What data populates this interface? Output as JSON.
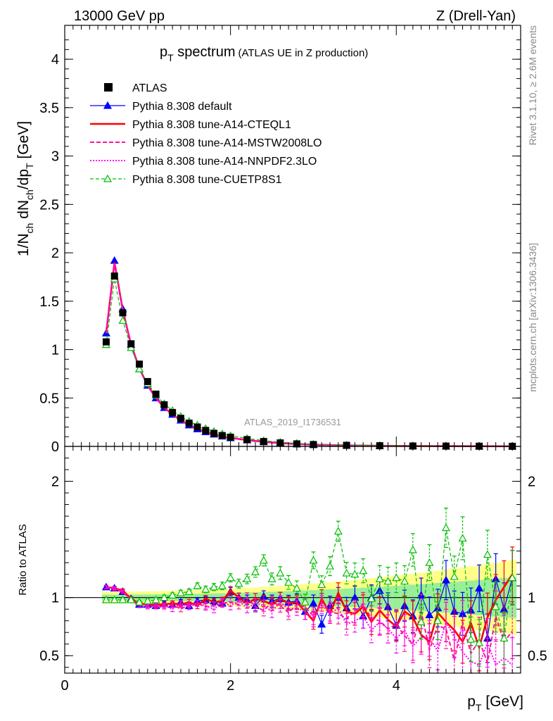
{
  "header": {
    "left": "13000 GeV pp",
    "right": "Z (Drell-Yan)"
  },
  "side_labels": {
    "rivet": "Rivet 3.1.10, ≥ 2.6M events",
    "mcplots": "mcplots.cern.ch [arXiv:1306.3436]"
  },
  "watermark": "ATLAS_2019_I1736531",
  "title": {
    "main_pre": "p",
    "main_sub": "T",
    "main_post": " spectrum",
    "sub": "(ATLAS UE in Z production)"
  },
  "axes": {
    "ylabel_text": "1/N",
    "ylabel_sub1": "ch",
    "ylabel_mid": " dN",
    "ylabel_sub2": "ch",
    "ylabel_mid2": "/dp",
    "ylabel_sub3": "T",
    "ylabel_unit": " [GeV]",
    "xlabel_pre": "p",
    "xlabel_sub": "T",
    "xlabel_post": " [GeV]",
    "ratio_label": "Ratio to ATLAS",
    "main_yticks": [
      "0",
      "0.5",
      "1",
      "1.5",
      "2",
      "2.5",
      "3",
      "3.5",
      "4"
    ],
    "ratio_yticks_left": [
      "0.5",
      "1",
      "2"
    ],
    "ratio_yticks_right": [
      "0.5",
      "1",
      "2"
    ],
    "xticks": [
      "0",
      "2",
      "4"
    ]
  },
  "legend": [
    {
      "label": "ATLAS",
      "color": "#000000",
      "style": "square"
    },
    {
      "label": "Pythia 8.308 default",
      "color": "#0000ff",
      "style": "solid-triangle"
    },
    {
      "label": "Pythia 8.308 tune-A14-CTEQL1",
      "color": "#ff0000",
      "style": "thick-solid"
    },
    {
      "label": "Pythia 8.308 tune-A14-MSTW2008LO",
      "color": "#ff1493",
      "style": "dashed"
    },
    {
      "label": "Pythia 8.308 tune-A14-NNPDF2.3LO",
      "color": "#ff00ff",
      "style": "dotted"
    },
    {
      "label": "Pythia 8.308 tune-CUETP8S1",
      "color": "#00c000",
      "style": "dashed-open-triangle"
    }
  ],
  "chart_data": {
    "type": "line",
    "title": "pT spectrum (ATLAS UE in Z production)",
    "xlabel": "pT [GeV]",
    "ylabel": "1/Nch dNch/dpT [GeV]",
    "xlim": [
      0,
      5.5
    ],
    "ylim": [
      0,
      4.35
    ],
    "ratio_ylim": [
      0.35,
      2.3
    ],
    "data_x": [
      0.5,
      0.6,
      0.7,
      0.8,
      0.9,
      1.0,
      1.1,
      1.2,
      1.3,
      1.4,
      1.5,
      1.6,
      1.7,
      1.8,
      1.9,
      2.0,
      2.2,
      2.4,
      2.6,
      2.8,
      3.0,
      3.4,
      3.8,
      4.2,
      4.6,
      5.0,
      5.4
    ],
    "data_y": [
      1.08,
      1.76,
      1.38,
      1.06,
      0.85,
      0.67,
      0.54,
      0.43,
      0.35,
      0.29,
      0.24,
      0.2,
      0.165,
      0.135,
      0.112,
      0.095,
      0.07,
      0.05,
      0.036,
      0.026,
      0.019,
      0.011,
      0.007,
      0.004,
      0.003,
      0.002,
      0.001
    ],
    "series_main": [
      {
        "name": "Pythia 8.308 default",
        "values": [
          1.17,
          1.92,
          1.42,
          1.05,
          0.8,
          0.63,
          0.5,
          0.4,
          0.33,
          0.27,
          0.22,
          0.18,
          0.15,
          0.125,
          0.105,
          0.088,
          0.065,
          0.047,
          0.034,
          0.025,
          0.018,
          0.01,
          0.006,
          0.004,
          0.003,
          0.002,
          0.001
        ]
      },
      {
        "name": "Pythia 8.308 tune-A14-CTEQL1",
        "values": [
          1.17,
          1.9,
          1.41,
          1.05,
          0.81,
          0.63,
          0.5,
          0.4,
          0.33,
          0.27,
          0.22,
          0.18,
          0.15,
          0.125,
          0.105,
          0.088,
          0.065,
          0.047,
          0.034,
          0.025,
          0.018,
          0.01,
          0.006,
          0.004,
          0.003,
          0.002,
          0.001
        ]
      },
      {
        "name": "Pythia 8.308 tune-A14-MSTW2008LO",
        "values": [
          1.17,
          1.89,
          1.41,
          1.05,
          0.8,
          0.63,
          0.5,
          0.4,
          0.33,
          0.27,
          0.22,
          0.18,
          0.15,
          0.125,
          0.105,
          0.088,
          0.065,
          0.047,
          0.034,
          0.025,
          0.018,
          0.01,
          0.006,
          0.004,
          0.003,
          0.002,
          0.001
        ]
      },
      {
        "name": "Pythia 8.308 tune-A14-NNPDF2.3LO",
        "values": [
          1.17,
          1.89,
          1.41,
          1.05,
          0.8,
          0.63,
          0.5,
          0.4,
          0.33,
          0.27,
          0.22,
          0.18,
          0.15,
          0.125,
          0.105,
          0.088,
          0.065,
          0.047,
          0.034,
          0.025,
          0.018,
          0.01,
          0.006,
          0.004,
          0.003,
          0.002,
          0.001
        ]
      },
      {
        "name": "Pythia 8.308 tune-CUETP8S1",
        "values": [
          1.05,
          1.73,
          1.3,
          1.02,
          0.8,
          0.65,
          0.53,
          0.44,
          0.37,
          0.31,
          0.26,
          0.22,
          0.185,
          0.155,
          0.13,
          0.11,
          0.082,
          0.06,
          0.044,
          0.032,
          0.023,
          0.013,
          0.008,
          0.005,
          0.004,
          0.003,
          0.002
        ]
      }
    ],
    "ratio_x": [
      0.5,
      0.6,
      0.7,
      0.8,
      0.9,
      1.0,
      1.1,
      1.2,
      1.3,
      1.4,
      1.5,
      1.6,
      1.7,
      1.8,
      1.9,
      2.0,
      2.1,
      2.2,
      2.3,
      2.4,
      2.5,
      2.6,
      2.7,
      2.8,
      2.9,
      3.0,
      3.1,
      3.2,
      3.3,
      3.4,
      3.5,
      3.6,
      3.7,
      3.8,
      3.9,
      4.0,
      4.1,
      4.2,
      4.3,
      4.4,
      4.5,
      4.6,
      4.7,
      4.8,
      4.9,
      5.0,
      5.1,
      5.2,
      5.3,
      5.4
    ],
    "ratio_series": [
      {
        "name": "Pythia 8.308 default",
        "values": [
          1.09,
          1.08,
          1.05,
          0.99,
          0.94,
          0.94,
          0.93,
          0.95,
          0.94,
          0.96,
          0.93,
          0.97,
          0.98,
          0.97,
          0.95,
          1.05,
          1.0,
          0.98,
          0.93,
          1.01,
          0.97,
          0.99,
          0.96,
          0.97,
          0.88,
          0.95,
          0.77,
          0.93,
          1.0,
          0.91,
          1.0,
          0.84,
          1.0,
          1.06,
          0.92,
          0.76,
          0.93,
          0.84,
          1.02,
          0.85,
          0.91,
          1.15,
          0.88,
          0.86,
          0.89,
          1.08,
          0.65,
          1.16,
          0.9,
          1.17
        ]
      },
      {
        "name": "Pythia 8.308 tune-A14-CTEQL1",
        "values": [
          1.09,
          1.08,
          1.06,
          0.99,
          0.95,
          0.94,
          0.94,
          0.94,
          0.95,
          0.94,
          0.96,
          0.93,
          0.99,
          0.96,
          0.97,
          1.06,
          1.0,
          0.95,
          0.99,
          0.97,
          0.94,
          0.99,
          0.95,
          0.96,
          0.88,
          0.8,
          0.99,
          0.86,
          1.04,
          0.88,
          0.86,
          0.92,
          0.79,
          0.89,
          0.81,
          0.75,
          0.88,
          0.83,
          0.68,
          0.62,
          0.87,
          0.79,
          0.72,
          0.62,
          0.78,
          0.57,
          0.83,
          0.98,
          1.09,
          1.2
        ]
      },
      {
        "name": "Pythia 8.308 tune-A14-MSTW2008LO",
        "values": [
          1.09,
          1.07,
          1.05,
          0.98,
          0.93,
          0.93,
          0.92,
          0.92,
          0.94,
          0.9,
          0.94,
          0.95,
          0.92,
          0.93,
          0.95,
          0.96,
          0.94,
          1.0,
          0.92,
          0.89,
          0.96,
          0.93,
          0.87,
          0.94,
          0.92,
          0.84,
          0.96,
          0.88,
          0.86,
          0.82,
          0.88,
          0.94,
          0.82,
          0.8,
          0.73,
          0.77,
          0.67,
          0.6,
          0.88,
          0.55,
          0.76,
          0.73,
          0.46,
          0.79,
          0.52,
          0.63,
          0.44,
          0.84,
          0.62,
          0.71
        ]
      },
      {
        "name": "Pythia 8.308 tune-A14-NNPDF2.3LO",
        "values": [
          1.09,
          1.08,
          1.05,
          0.98,
          0.93,
          0.92,
          0.93,
          0.93,
          0.9,
          0.95,
          0.92,
          0.95,
          0.93,
          0.9,
          0.96,
          0.93,
          0.97,
          0.91,
          0.95,
          0.93,
          0.88,
          0.96,
          0.9,
          0.91,
          0.88,
          0.82,
          0.94,
          0.86,
          0.91,
          0.77,
          0.8,
          0.84,
          0.72,
          0.79,
          0.73,
          0.65,
          0.72,
          0.58,
          0.66,
          0.65,
          0.54,
          0.79,
          0.66,
          0.53,
          0.45,
          0.42,
          0.61,
          0.42,
          0.48,
          0.42
        ]
      },
      {
        "name": "Pythia 8.308 tune-CUETP8S1",
        "values": [
          0.98,
          0.98,
          0.98,
          0.98,
          0.96,
          0.97,
          0.98,
          1.0,
          1.02,
          1.04,
          1.05,
          1.1,
          1.07,
          1.09,
          1.1,
          1.17,
          1.12,
          1.16,
          1.22,
          1.32,
          1.16,
          1.21,
          1.13,
          1.08,
          0.96,
          1.32,
          1.11,
          1.27,
          1.57,
          1.21,
          1.2,
          1.23,
          0.99,
          1.16,
          1.14,
          1.17,
          1.14,
          1.41,
          0.79,
          1.3,
          0.8,
          1.6,
          1.18,
          1.51,
          0.64,
          0.61,
          1.37,
          0.92,
          0.65,
          1.17
        ]
      }
    ]
  }
}
